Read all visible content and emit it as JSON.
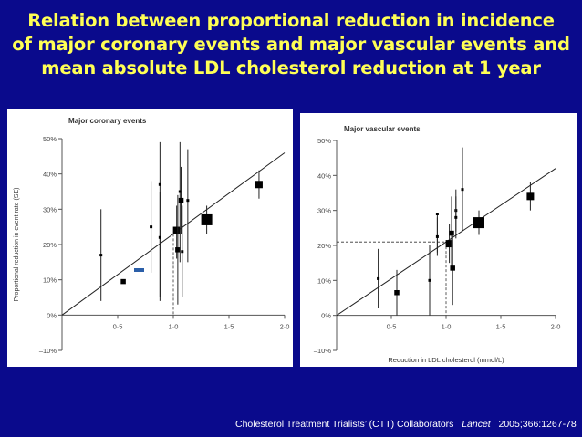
{
  "title": {
    "line1": "Relation between proportional reduction in incidence",
    "line2": "of major coronary events and major vascular events and",
    "line3": "mean absolute LDL cholesterol reduction at 1 year"
  },
  "citation": {
    "authors": "Cholesterol Treatment Trialists’ (CTT) Collaborators",
    "journal": "Lancet",
    "ref": "2005;366:1267-78"
  },
  "colors": {
    "background": "#0a0a8c",
    "title": "#ffff55",
    "panel": "#ffffff",
    "marker": "#000000",
    "accent_dash": "#2b5fa8"
  },
  "chart_data": [
    {
      "type": "scatter",
      "title": "Major coronary events",
      "ylabel": "Proportional reduction in event rate (SE)",
      "xlabel": "",
      "xlim": [
        0,
        2.0
      ],
      "ylim": [
        -10,
        50
      ],
      "x_ticks": [
        0.5,
        1.0,
        1.5,
        2.0
      ],
      "x_tick_labels": [
        "0·5",
        "1·0",
        "1·5",
        "2·0"
      ],
      "y_ticks": [
        -10,
        0,
        10,
        20,
        30,
        40,
        50
      ],
      "y_tick_labels": [
        "–10%",
        "0%",
        "10%",
        "20%",
        "30%",
        "40%",
        "50%"
      ],
      "reference_line": {
        "x": 1.0,
        "y": 23
      },
      "regression_line": [
        [
          0,
          0
        ],
        [
          2.0,
          46
        ]
      ],
      "points": [
        {
          "x": 0.35,
          "y": 17,
          "lo": 4,
          "hi": 30,
          "weight": 1
        },
        {
          "x": 0.55,
          "y": 9.5,
          "lo": 9.5,
          "hi": 9.5,
          "weight": 2
        },
        {
          "x": 0.8,
          "y": 25,
          "lo": 12,
          "hi": 38,
          "weight": 1
        },
        {
          "x": 0.88,
          "y": 37,
          "lo": 5,
          "hi": 49,
          "weight": 1
        },
        {
          "x": 0.88,
          "y": 22,
          "lo": 4,
          "hi": 35,
          "weight": 1
        },
        {
          "x": 1.03,
          "y": 24,
          "lo": 16,
          "hi": 31,
          "weight": 3
        },
        {
          "x": 1.04,
          "y": 18.5,
          "lo": 3,
          "hi": 34,
          "weight": 2
        },
        {
          "x": 1.06,
          "y": 35,
          "lo": 15,
          "hi": 49,
          "weight": 1
        },
        {
          "x": 1.07,
          "y": 32.5,
          "lo": 23,
          "hi": 42,
          "weight": 2
        },
        {
          "x": 1.08,
          "y": 18,
          "lo": 5,
          "hi": 31,
          "weight": 1
        },
        {
          "x": 1.13,
          "y": 32.5,
          "lo": 15,
          "hi": 47,
          "weight": 1
        },
        {
          "x": 1.3,
          "y": 27,
          "lo": 23,
          "hi": 31,
          "weight": 4
        },
        {
          "x": 1.77,
          "y": 37,
          "lo": 33,
          "hi": 41,
          "weight": 3
        }
      ]
    },
    {
      "type": "scatter",
      "title": "Major vascular events",
      "ylabel": "",
      "xlabel": "Reduction in LDL cholesterol (mmol/L)",
      "xlim": [
        0,
        2.0
      ],
      "ylim": [
        -10,
        50
      ],
      "x_ticks": [
        0.5,
        1.0,
        1.5,
        2.0
      ],
      "x_tick_labels": [
        "0·5",
        "1·0",
        "1·5",
        "2·0"
      ],
      "y_ticks": [
        -10,
        0,
        10,
        20,
        30,
        40,
        50
      ],
      "y_tick_labels": [
        "–10%",
        "0%",
        "10%",
        "20%",
        "30%",
        "40%",
        "50%"
      ],
      "reference_line": {
        "x": 1.0,
        "y": 21
      },
      "regression_line": [
        [
          0,
          0
        ],
        [
          2.0,
          42
        ]
      ],
      "points": [
        {
          "x": 0.38,
          "y": 10.5,
          "lo": 2,
          "hi": 19,
          "weight": 1
        },
        {
          "x": 0.55,
          "y": 6.5,
          "lo": 0,
          "hi": 13,
          "weight": 2
        },
        {
          "x": 0.85,
          "y": 10,
          "lo": 0,
          "hi": 20,
          "weight": 1
        },
        {
          "x": 0.92,
          "y": 29,
          "lo": 18,
          "hi": 29,
          "weight": 1
        },
        {
          "x": 0.92,
          "y": 22.5,
          "lo": 17,
          "hi": 28,
          "weight": 1
        },
        {
          "x": 1.03,
          "y": 20.5,
          "lo": 15,
          "hi": 26,
          "weight": 3
        },
        {
          "x": 1.05,
          "y": 23.5,
          "lo": 13,
          "hi": 34,
          "weight": 2
        },
        {
          "x": 1.06,
          "y": 13.5,
          "lo": 3,
          "hi": 23,
          "weight": 2
        },
        {
          "x": 1.09,
          "y": 30,
          "lo": 24,
          "hi": 36,
          "weight": 1
        },
        {
          "x": 1.09,
          "y": 28,
          "lo": 22,
          "hi": 34,
          "weight": 1
        },
        {
          "x": 1.15,
          "y": 36,
          "lo": 24,
          "hi": 48,
          "weight": 1
        },
        {
          "x": 1.3,
          "y": 26.5,
          "lo": 23,
          "hi": 30,
          "weight": 4
        },
        {
          "x": 1.77,
          "y": 34,
          "lo": 30,
          "hi": 38,
          "weight": 3
        }
      ]
    }
  ]
}
